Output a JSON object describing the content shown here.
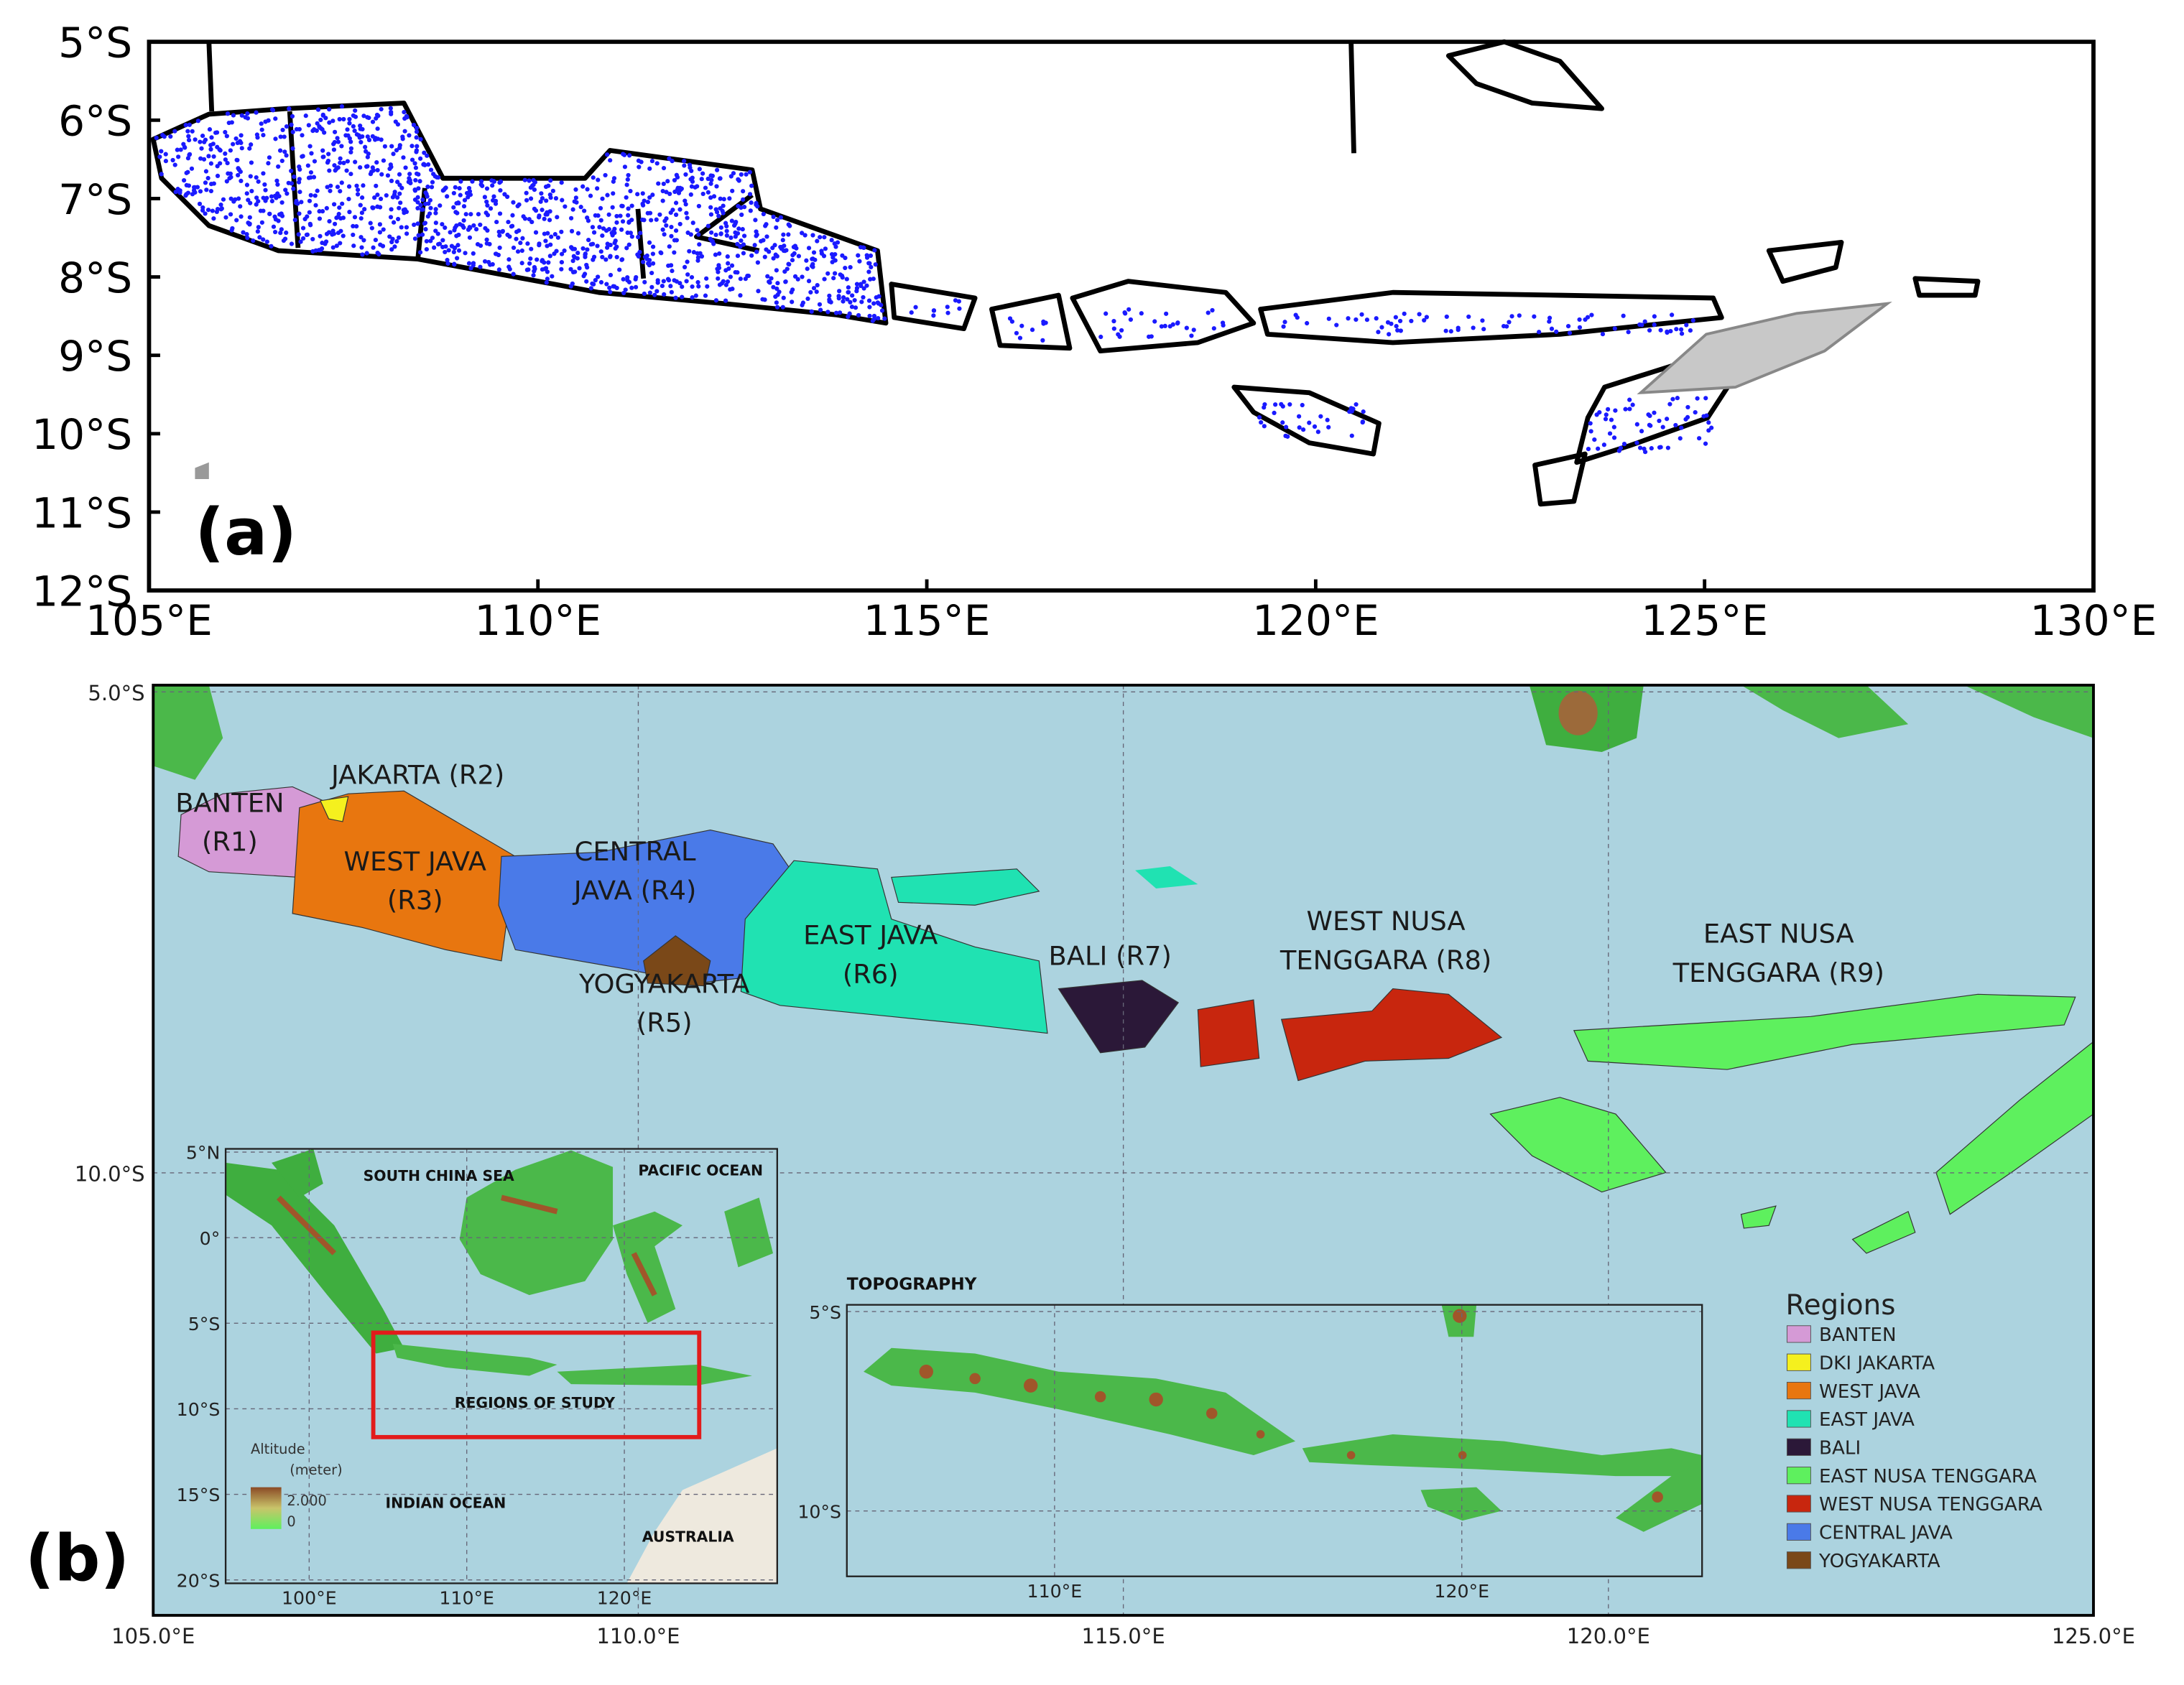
{
  "panel_a": {
    "label": "(a)",
    "xlim": [
      105,
      130
    ],
    "ylim": [
      -5,
      -12
    ],
    "xticks": [
      {
        "value": 105,
        "label": "105°E"
      },
      {
        "value": 110,
        "label": "110°E"
      },
      {
        "value": 115,
        "label": "115°E"
      },
      {
        "value": 120,
        "label": "120°E"
      },
      {
        "value": 125,
        "label": "125°E"
      },
      {
        "value": 130,
        "label": "130°E"
      }
    ],
    "yticks": [
      {
        "value": -5,
        "label": "5°S"
      },
      {
        "value": -6,
        "label": "6°S"
      },
      {
        "value": -7,
        "label": "7°S"
      },
      {
        "value": -8,
        "label": "8°S"
      },
      {
        "value": -9,
        "label": "9°S"
      },
      {
        "value": -10,
        "label": "10°S"
      },
      {
        "value": -11,
        "label": "11°S"
      },
      {
        "value": -12,
        "label": "12°S"
      }
    ]
  },
  "panel_b": {
    "label": "(b)",
    "xlim": [
      105,
      125
    ],
    "ylim": [
      -4.93,
      -14.6
    ],
    "xticks": [
      {
        "value": 105,
        "label": "105.0°E"
      },
      {
        "value": 110,
        "label": "110.0°E"
      },
      {
        "value": 115,
        "label": "115.0°E"
      },
      {
        "value": 120,
        "label": "120.0°E"
      },
      {
        "value": 125,
        "label": "125.0°E"
      }
    ],
    "yticks": [
      {
        "value": -5,
        "label": "5.0°S"
      },
      {
        "value": -10,
        "label": "10.0°S"
      }
    ],
    "region_labels": [
      [
        "BANTEN",
        "(R1)"
      ],
      [
        "JAKARTA (R2)"
      ],
      [
        "WEST JAVA",
        "(R3)"
      ],
      [
        "CENTRAL",
        "JAVA (R4)"
      ],
      [
        "YOGYAKARTA",
        "(R5)"
      ],
      [
        "EAST JAVA",
        "(R6)"
      ],
      [
        "BALI (R7)"
      ],
      [
        "WEST NUSA",
        "TENGGARA (R8)"
      ],
      [
        "EAST NUSA",
        "TENGGARA (R9)"
      ]
    ],
    "legend": {
      "title": "Regions",
      "items": [
        {
          "label": "BANTEN",
          "color": "#d59ad6"
        },
        {
          "label": "DKI JAKARTA",
          "color": "#f5f01e"
        },
        {
          "label": "WEST JAVA",
          "color": "#e8760f"
        },
        {
          "label": "EAST JAVA",
          "color": "#20e2b2"
        },
        {
          "label": "BALI",
          "color": "#2b1838"
        },
        {
          "label": "EAST NUSA TENGGARA",
          "color": "#5ef05e"
        },
        {
          "label": "WEST NUSA TENGGARA",
          "color": "#c8260e"
        },
        {
          "label": "CENTRAL JAVA",
          "color": "#4a7ae8"
        },
        {
          "label": "YOGYAKARTA",
          "color": "#7a4818"
        }
      ]
    },
    "inset_overview": {
      "xlim": [
        94.7,
        129.7
      ],
      "ylim": [
        5.19,
        -20.2
      ],
      "xticks": [
        {
          "value": 100,
          "label": "100°E"
        },
        {
          "value": 110,
          "label": "110°E"
        },
        {
          "value": 120,
          "label": "120°E"
        }
      ],
      "yticks": [
        {
          "value": 5,
          "label": "5°N"
        },
        {
          "value": 0,
          "label": "0°"
        },
        {
          "value": -5,
          "label": "5°S"
        },
        {
          "value": -10,
          "label": "10°S"
        },
        {
          "value": -15,
          "label": "15°S"
        },
        {
          "value": -20,
          "label": "20°S"
        }
      ],
      "labels": [
        "SOUTH CHINA SEA",
        "PACIFIC OCEAN",
        "REGIONS OF STUDY",
        "INDIAN OCEAN",
        "AUSTRALIA"
      ],
      "colorbar": {
        "title": "Altitude",
        "unit": "(meter)",
        "max_label": "2.000",
        "min_label": "0"
      }
    },
    "inset_topography": {
      "title": "TOPOGRAPHY",
      "xlim": [
        104.9,
        125.9
      ],
      "ylim": [
        -4.83,
        -11.64
      ],
      "xticks": [
        {
          "value": 110,
          "label": "110°E"
        },
        {
          "value": 120,
          "label": "120°E"
        }
      ],
      "yticks": [
        {
          "value": -5,
          "label": "5°S"
        },
        {
          "value": -10,
          "label": "10°S"
        }
      ]
    }
  }
}
